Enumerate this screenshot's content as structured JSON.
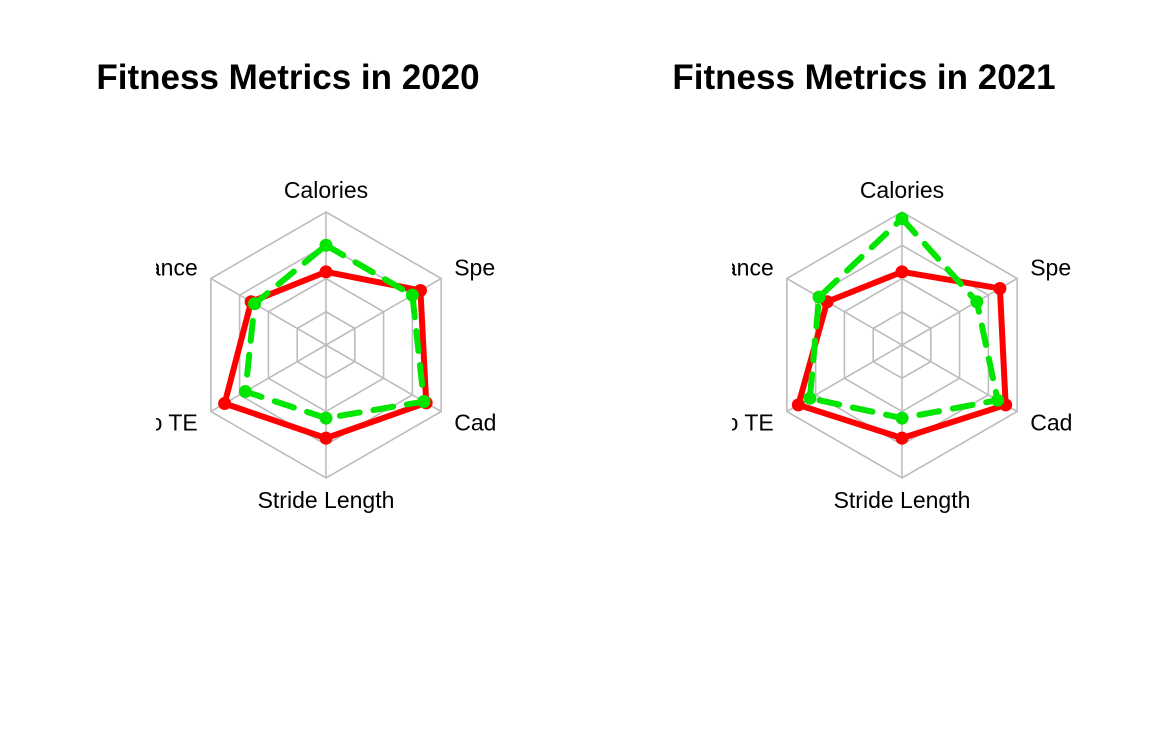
{
  "chart_data": [
    {
      "type": "radar",
      "title": "Fitness Metrics in 2020",
      "axes": [
        "Calories",
        "Speed",
        "Cadence",
        "Stride Length",
        "Aero TE",
        "Distance"
      ],
      "range": [
        0,
        1
      ],
      "grid": true,
      "grid_levels": 4,
      "series": [
        {
          "color": "#ff0000",
          "style": "solid",
          "values": [
            0.55,
            0.82,
            0.87,
            0.7,
            0.88,
            0.65
          ]
        },
        {
          "color": "#00e600",
          "style": "dashed",
          "values": [
            0.75,
            0.75,
            0.85,
            0.55,
            0.7,
            0.62
          ]
        }
      ]
    },
    {
      "type": "radar",
      "title": "Fitness Metrics in 2021",
      "axes": [
        "Calories",
        "Speed",
        "Cadence",
        "Stride Length",
        "Aero TE",
        "Distance"
      ],
      "range": [
        0,
        1
      ],
      "grid": true,
      "grid_levels": 4,
      "series": [
        {
          "color": "#ff0000",
          "style": "solid",
          "values": [
            0.55,
            0.85,
            0.9,
            0.7,
            0.9,
            0.65
          ]
        },
        {
          "color": "#00e600",
          "style": "dashed",
          "values": [
            0.95,
            0.65,
            0.83,
            0.55,
            0.8,
            0.72
          ]
        }
      ]
    }
  ]
}
